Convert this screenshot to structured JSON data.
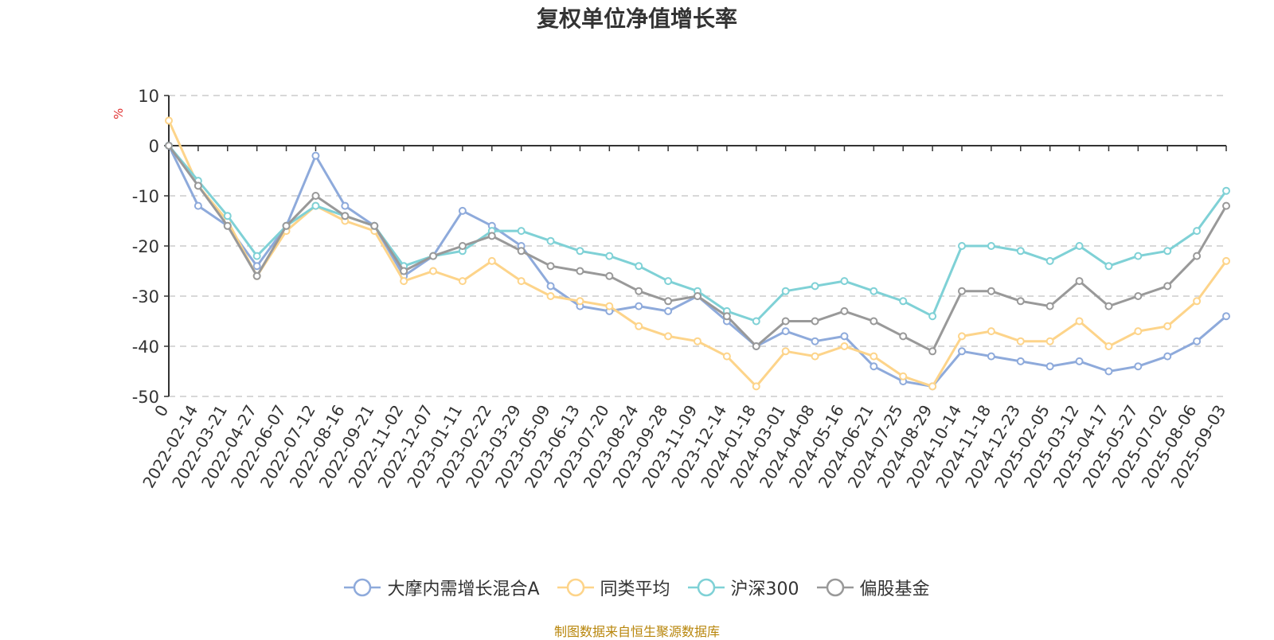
{
  "title": "复权单位净值增长率",
  "unit": "%",
  "source": "制图数据来自恒生聚源数据库",
  "chart_data": {
    "type": "line",
    "title": "复权单位净值增长率",
    "ylabel": "%",
    "ylim": [
      -50,
      10
    ],
    "yticks": [
      10,
      0,
      -10,
      -20,
      -30,
      -40,
      -50
    ],
    "grid": true,
    "legend_position": "bottom",
    "x_tick_labels": [
      "0",
      "2022-02-14",
      "2022-03-21",
      "2022-04-27",
      "2022-06-07",
      "2022-07-12",
      "2022-08-16",
      "2022-09-21",
      "2022-11-02",
      "2022-12-07",
      "2023-01-11",
      "2023-02-22",
      "2023-03-29",
      "2023-05-09",
      "2023-06-13",
      "2023-07-20",
      "2023-08-24",
      "2023-09-28",
      "2023-11-09",
      "2023-12-14",
      "2024-01-18",
      "2024-03-01",
      "2024-04-08",
      "2024-05-16",
      "2024-06-21",
      "2024-07-25",
      "2024-08-29",
      "2024-10-14",
      "2024-11-18",
      "2024-12-23",
      "2025-02-05",
      "2025-03-12",
      "2025-04-17",
      "2025-05-27",
      "2025-07-02",
      "2025-08-06",
      "2025-09-03"
    ],
    "x": [
      "0",
      "2022-02-14",
      "2022-03-21",
      "2022-04-27",
      "2022-06-07",
      "2022-07-12",
      "2022-08-16",
      "2022-09-21",
      "2022-11-02",
      "2022-12-07",
      "2023-01-11",
      "2023-02-22",
      "2023-03-29",
      "2023-05-09",
      "2023-06-13",
      "2023-07-20",
      "2023-08-24",
      "2023-09-28",
      "2023-11-09",
      "2023-12-14",
      "2024-01-18",
      "2024-03-01",
      "2024-04-08",
      "2024-05-16",
      "2024-06-21",
      "2024-07-25",
      "2024-08-29",
      "2024-10-14",
      "2024-11-18",
      "2024-12-23",
      "2025-02-05",
      "2025-03-12",
      "2025-04-17",
      "2025-05-27",
      "2025-07-02",
      "2025-08-06",
      "2025-09-03"
    ],
    "series": [
      {
        "name": "大摩内需增长混合A",
        "color": "#8eaadb",
        "values": [
          0,
          -12,
          -16,
          -24,
          -16,
          -2,
          -12,
          -16,
          -26,
          -22,
          -13,
          -16,
          -20,
          -28,
          -32,
          -33,
          -32,
          -33,
          -30,
          -35,
          -40,
          -37,
          -39,
          -38,
          -44,
          -47,
          -48,
          -41,
          -42,
          -43,
          -44,
          -43,
          -45,
          -44,
          -42,
          -39,
          -34
        ]
      },
      {
        "name": "同类平均",
        "color": "#fdd48a",
        "values": [
          5,
          -8,
          -15,
          -26,
          -17,
          -12,
          -15,
          -17,
          -27,
          -25,
          -27,
          -23,
          -27,
          -30,
          -31,
          -32,
          -36,
          -38,
          -39,
          -42,
          -48,
          -41,
          -42,
          -40,
          -42,
          -46,
          -48,
          -38,
          -37,
          -39,
          -39,
          -35,
          -40,
          -37,
          -36,
          -31,
          -23
        ]
      },
      {
        "name": "沪深300",
        "color": "#7fd1d6",
        "values": [
          0,
          -7,
          -14,
          -22,
          -16,
          -12,
          -14,
          -16,
          -24,
          -22,
          -21,
          -17,
          -17,
          -19,
          -21,
          -22,
          -24,
          -27,
          -29,
          -33,
          -35,
          -29,
          -28,
          -27,
          -29,
          -31,
          -34,
          -20,
          -20,
          -21,
          -23,
          -20,
          -24,
          -22,
          -21,
          -17,
          -9
        ]
      },
      {
        "name": "偏股基金",
        "color": "#999999",
        "values": [
          0,
          -8,
          -16,
          -26,
          -16,
          -10,
          -14,
          -16,
          -25,
          -22,
          -20,
          -18,
          -21,
          -24,
          -25,
          -26,
          -29,
          -31,
          -30,
          -34,
          -40,
          -35,
          -35,
          -33,
          -35,
          -38,
          -41,
          -29,
          -29,
          -31,
          -32,
          -27,
          -32,
          -30,
          -28,
          -22,
          -12
        ]
      }
    ]
  }
}
